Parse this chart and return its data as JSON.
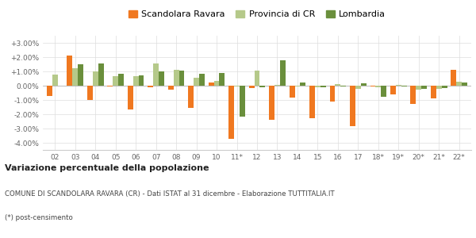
{
  "categories": [
    "02",
    "03",
    "04",
    "05",
    "06",
    "07",
    "08",
    "09",
    "10",
    "11*",
    "12",
    "13",
    "14",
    "15",
    "16",
    "17",
    "18*",
    "19*",
    "20*",
    "21*",
    "22*"
  ],
  "scandolara": [
    -0.7,
    2.1,
    -1.0,
    -0.05,
    -1.65,
    -0.1,
    -0.25,
    -1.55,
    0.2,
    -3.7,
    -0.15,
    -2.4,
    -0.85,
    -2.3,
    -1.1,
    -2.85,
    -0.05,
    -0.6,
    -1.25,
    -0.9,
    1.1
  ],
  "provincia": [
    0.8,
    1.2,
    1.0,
    0.65,
    0.65,
    1.55,
    1.1,
    0.55,
    0.35,
    -0.05,
    1.05,
    0.05,
    -0.05,
    -0.1,
    0.1,
    -0.2,
    -0.1,
    0.05,
    -0.3,
    -0.2,
    0.3
  ],
  "lombardia": [
    0.0,
    1.5,
    1.55,
    0.85,
    0.75,
    1.0,
    1.05,
    0.85,
    0.9,
    -2.15,
    -0.1,
    1.8,
    0.25,
    -0.1,
    -0.05,
    0.15,
    -0.75,
    -0.05,
    -0.2,
    -0.15,
    0.25
  ],
  "color_scandolara": "#f07820",
  "color_provincia": "#b5c98a",
  "color_lombardia": "#6a8f3c",
  "ylim": [
    -4.5,
    3.5
  ],
  "yticks": [
    -4.0,
    -3.0,
    -2.0,
    -1.0,
    0.0,
    1.0,
    2.0,
    3.0
  ],
  "title_bold": "Variazione percentuale della popolazione",
  "subtitle1": "COMUNE DI SCANDOLARA RAVARA (CR) - Dati ISTAT al 31 dicembre - Elaborazione TUTTITALIA.IT",
  "subtitle2": "(*) post-censimento",
  "legend_labels": [
    "Scandolara Ravara",
    "Provincia di CR",
    "Lombardia"
  ]
}
